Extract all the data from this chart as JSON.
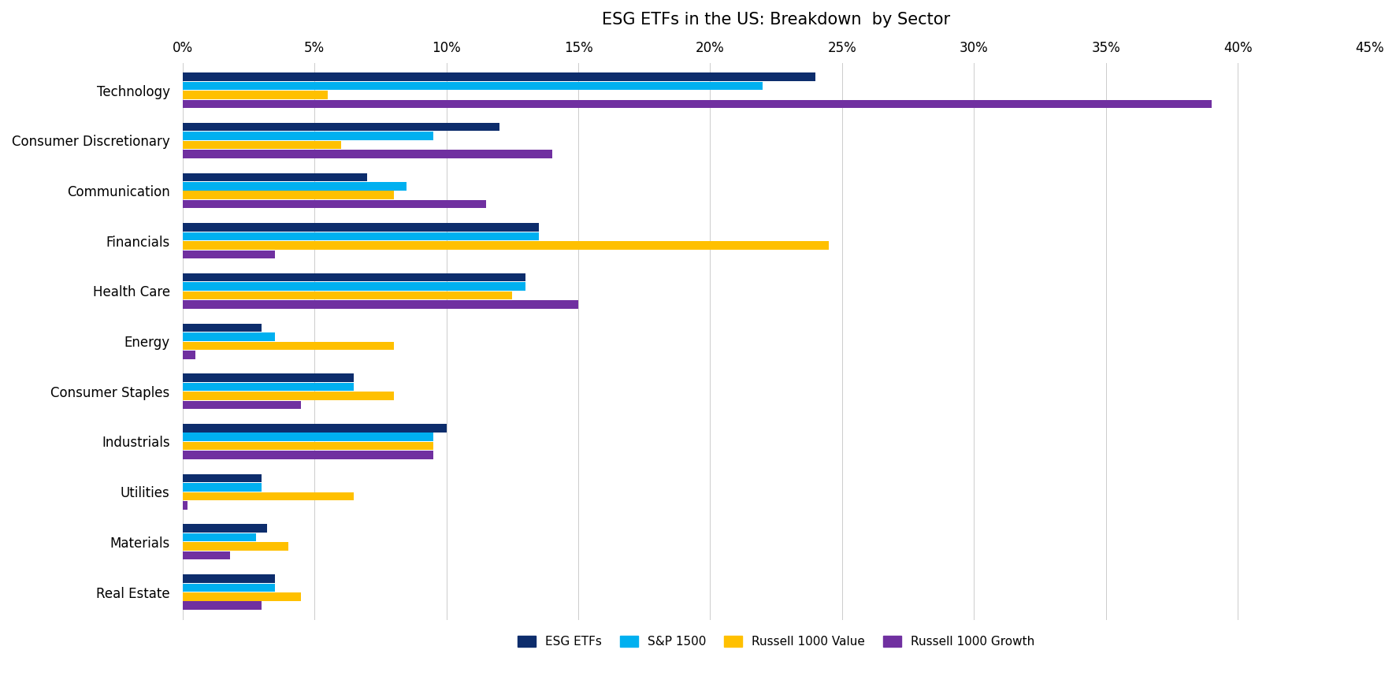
{
  "title": "ESG ETFs in the US: Breakdown  by Sector",
  "categories": [
    "Technology",
    "Consumer Discretionary",
    "Communication",
    "Financials",
    "Health Care",
    "Energy",
    "Consumer Staples",
    "Industrials",
    "Utilities",
    "Materials",
    "Real Estate"
  ],
  "series": {
    "ESG ETFs": [
      24.0,
      12.0,
      7.0,
      13.5,
      13.0,
      3.0,
      6.5,
      10.0,
      3.0,
      3.2,
      3.5
    ],
    "S&P 1500": [
      22.0,
      9.5,
      8.5,
      13.5,
      13.0,
      3.5,
      6.5,
      9.5,
      3.0,
      2.8,
      3.5
    ],
    "Russell 1000 Value": [
      5.5,
      6.0,
      8.0,
      24.5,
      12.5,
      8.0,
      8.0,
      9.5,
      6.5,
      4.0,
      4.5
    ],
    "Russell 1000 Growth": [
      39.0,
      14.0,
      11.5,
      3.5,
      15.0,
      0.5,
      4.5,
      9.5,
      0.2,
      1.8,
      3.0
    ]
  },
  "colors": {
    "ESG ETFs": "#0d2d6c",
    "S&P 1500": "#00b0f0",
    "Russell 1000 Value": "#ffc000",
    "Russell 1000 Growth": "#7030a0"
  },
  "xlim": [
    0,
    45
  ],
  "xtick_values": [
    0,
    5,
    10,
    15,
    20,
    25,
    30,
    35,
    40,
    45
  ],
  "xtick_labels": [
    "0%",
    "5%",
    "10%",
    "15%",
    "20%",
    "25%",
    "30%",
    "35%",
    "40%",
    "45%"
  ],
  "bar_height": 0.18,
  "figsize": [
    17.72,
    8.86
  ],
  "dpi": 100,
  "title_fontsize": 15,
  "axis_fontsize": 12,
  "legend_fontsize": 11,
  "background_color": "#ffffff"
}
